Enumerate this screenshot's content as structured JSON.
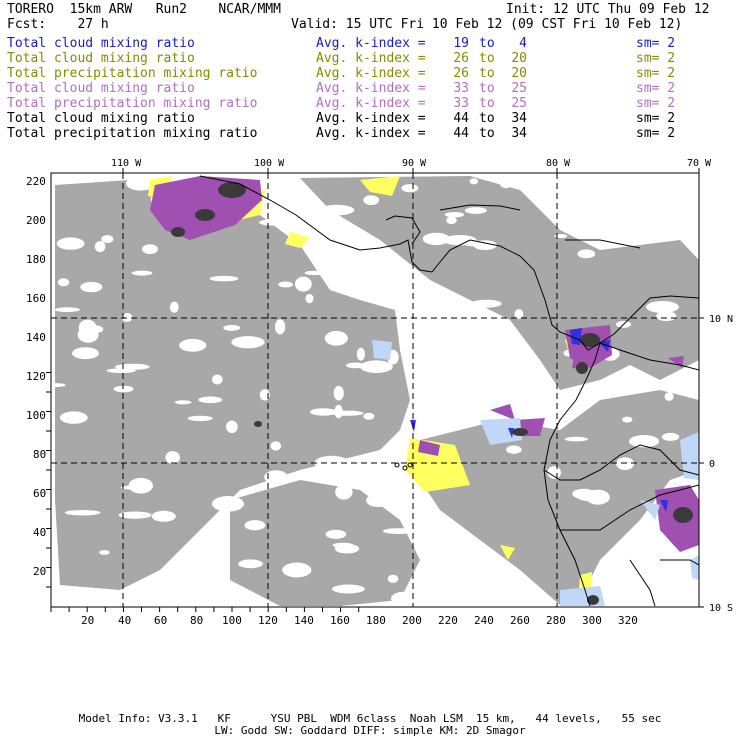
{
  "header": {
    "model": "TORERO  15km ARW   Run2    NCAR/MMM",
    "init": "Init: 12 UTC Thu 09 Feb 12",
    "fcst": "Fcst:    27 h",
    "valid": "Valid: 15 UTC Fri 10 Feb 12 (09 CST Fri 10 Feb 12)"
  },
  "legend": [
    {
      "name": "Total cloud mixing ratio",
      "avg": "Avg. k-index =",
      "a": "19",
      "to": "to",
      "b": "4",
      "sm": "sm= 2",
      "color": "#1a1acc"
    },
    {
      "name": "Total cloud mixing ratio",
      "avg": "Avg. k-index =",
      "a": "26",
      "to": "to",
      "b": "20",
      "sm": "sm= 2",
      "color": "#8a8a00"
    },
    {
      "name": "Total precipitation mixing ratio",
      "avg": "Avg. k-index =",
      "a": "26",
      "to": "to",
      "b": "20",
      "sm": "sm= 2",
      "color": "#8a8a00"
    },
    {
      "name": "Total cloud mixing ratio",
      "avg": "Avg. k-index =",
      "a": "33",
      "to": "to",
      "b": "25",
      "sm": "sm= 2",
      "color": "#b070c0"
    },
    {
      "name": "Total precipitation mixing ratio",
      "avg": "Avg. k-index =",
      "a": "33",
      "to": "to",
      "b": "25",
      "sm": "sm= 2",
      "color": "#b070c0"
    },
    {
      "name": "Total cloud mixing ratio",
      "avg": "Avg. k-index =",
      "a": "44",
      "to": "to",
      "b": "34",
      "sm": "sm= 2",
      "color": "#000000"
    },
    {
      "name": "Total precipitation mixing ratio",
      "avg": "Avg. k-index =",
      "a": "44",
      "to": "to",
      "b": "34",
      "sm": "sm= 2",
      "color": "#000000"
    }
  ],
  "map": {
    "lon_labels": [
      "110 W",
      "100 W",
      "90 W",
      "80 W",
      "70 W"
    ],
    "lat_labels": [
      "10 N",
      "0",
      "10 S"
    ],
    "y_ticks": [
      "220",
      "200",
      "180",
      "160",
      "140",
      "120",
      "100",
      "80",
      "60",
      "40",
      "20"
    ],
    "x_ticks": [
      "20",
      "40",
      "60",
      "80",
      "100",
      "120",
      "140",
      "160",
      "180",
      "200",
      "220",
      "240",
      "260",
      "280",
      "300",
      "320"
    ],
    "colors": {
      "cloud_gray": "#a8a8a8",
      "dark_gray": "#3a3a3a",
      "yellow": "#ffff60",
      "purple": "#a050b0",
      "light_blue": "#c0d8f8",
      "blue": "#3030e0"
    }
  },
  "footer": {
    "line1": "Model Info: V3.3.1   KF      YSU PBL  WDM 6class  Noah LSM  15 km,   44 levels,   55 sec",
    "line2": "LW: Godd SW: Goddard DIFF: simple KM: 2D Smagor"
  }
}
